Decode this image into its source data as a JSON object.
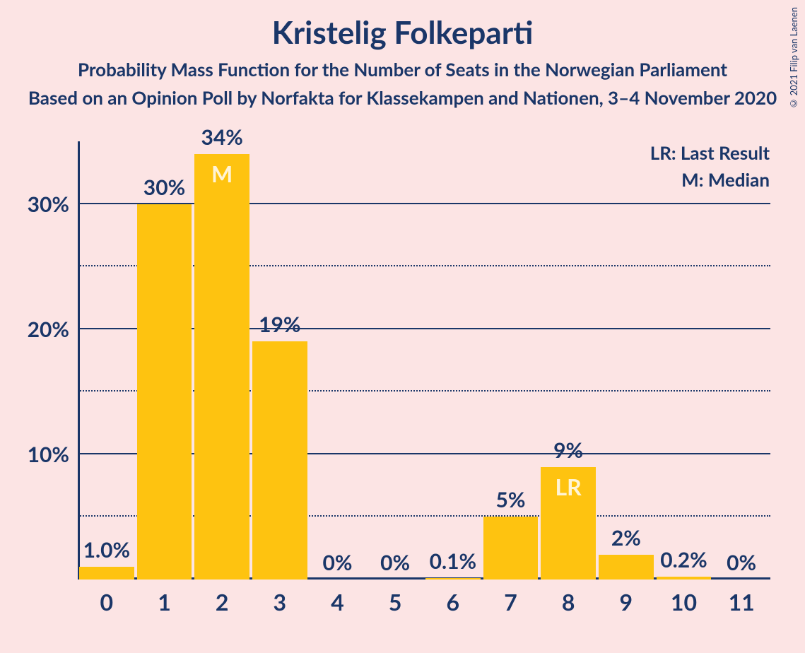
{
  "title": "Kristelig Folkeparti",
  "subtitle": "Probability Mass Function for the Number of Seats in the Norwegian Parliament",
  "subtitle2": "Based on an Opinion Poll by Norfakta for Klassekampen and Nationen, 3–4 November 2020",
  "copyright": "© 2021 Filip van Laenen",
  "legend": {
    "lr": "LR: Last Result",
    "m": "M: Median"
  },
  "chart": {
    "type": "bar",
    "bar_color": "#fec310",
    "background_color": "#fce4e4",
    "text_color": "#1a3668",
    "bar_letter_color": "#fff4d6",
    "ylim_max": 35,
    "y_major_ticks": [
      10,
      20,
      30
    ],
    "y_minor_ticks": [
      5,
      15,
      25
    ],
    "y_tick_labels": [
      "10%",
      "20%",
      "30%"
    ],
    "categories": [
      "0",
      "1",
      "2",
      "3",
      "4",
      "5",
      "6",
      "7",
      "8",
      "9",
      "10",
      "11"
    ],
    "values": [
      1.0,
      30,
      34,
      19,
      0,
      0,
      0.1,
      5,
      9,
      2,
      0.2,
      0
    ],
    "labels": [
      "1.0%",
      "30%",
      "34%",
      "19%",
      "0%",
      "0%",
      "0.1%",
      "5%",
      "9%",
      "2%",
      "0.2%",
      "0%"
    ],
    "annotations": {
      "2": "M",
      "8": "LR"
    },
    "title_fontsize": 44,
    "subtitle_fontsize": 26,
    "axis_label_fontsize": 30,
    "bar_label_fontsize": 30,
    "x_label_fontsize": 32
  }
}
